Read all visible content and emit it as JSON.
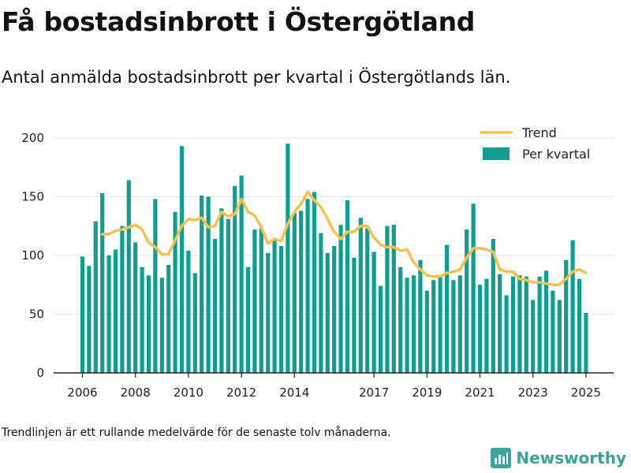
{
  "title": "Få bostadsinbrott i Östergötland",
  "subtitle": "Antal anmälda bostadsinbrott per kvartal i Östergötlands län.",
  "footnote": "Trendlinjen är ett rullande medelvärde för de senaste tolv månaderna.",
  "brand": "Newsworthy",
  "colors": {
    "bar": "#0e9e92",
    "trend": "#f7c150",
    "grid": "#e2e2e2",
    "axis": "#222222",
    "brand": "#3aa39a"
  },
  "chart_data": {
    "type": "bar",
    "x_start": "2006-Q1",
    "period": "quarter",
    "xticks": [
      "2006",
      "2008",
      "2010",
      "2012",
      "2014",
      "2017",
      "2019",
      "2021",
      "2023",
      "2025"
    ],
    "yticks": [
      0,
      50,
      100,
      150,
      200
    ],
    "ylim": [
      0,
      210
    ],
    "legend_position": "top-right",
    "grid": "horizontal",
    "series": [
      {
        "name": "Per kvartal",
        "kind": "bar",
        "values": [
          99,
          91,
          129,
          153,
          100,
          105,
          125,
          164,
          111,
          90,
          83,
          148,
          81,
          92,
          137,
          193,
          104,
          85,
          151,
          150,
          114,
          140,
          131,
          159,
          168,
          90,
          122,
          123,
          102,
          113,
          108,
          195,
          136,
          138,
          148,
          154,
          119,
          102,
          108,
          126,
          147,
          98,
          132,
          123,
          103,
          74,
          125,
          126,
          90,
          81,
          83,
          96,
          70,
          79,
          82,
          109,
          79,
          83,
          122,
          144,
          75,
          80,
          114,
          84,
          66,
          82,
          83,
          82,
          62,
          82,
          87,
          70,
          62,
          96,
          113,
          80,
          51
        ]
      },
      {
        "name": "Trend",
        "kind": "line",
        "values": [
          null,
          null,
          null,
          118,
          118,
          121,
          122,
          124,
          126,
          122,
          111,
          107,
          101,
          101,
          113,
          125,
          131,
          130,
          132,
          124,
          125,
          137,
          133,
          135,
          148,
          137,
          134,
          124,
          110,
          114,
          112,
          127,
          137,
          144,
          154,
          147,
          141,
          131,
          120,
          114,
          120,
          120,
          125,
          125,
          115,
          109,
          107,
          107,
          104,
          105,
          94,
          88,
          83,
          82,
          82,
          85,
          86,
          88,
          98,
          106,
          106,
          105,
          103,
          88,
          86,
          86,
          80,
          79,
          77,
          77,
          76,
          75,
          75,
          80,
          86,
          88,
          85
        ]
      }
    ]
  }
}
